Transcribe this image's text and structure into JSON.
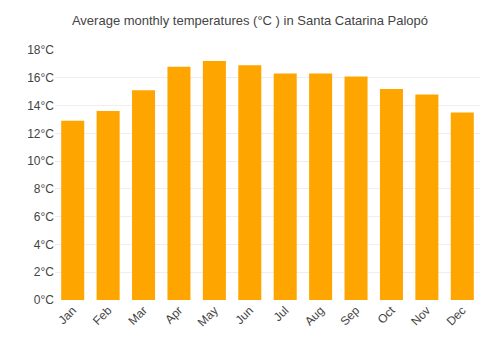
{
  "chart_data": {
    "type": "bar",
    "title": "Average monthly temperatures (°C ) in Santa Catarina Palopó",
    "categories": [
      "Jan",
      "Feb",
      "Mar",
      "Apr",
      "May",
      "Jun",
      "Jul",
      "Aug",
      "Sep",
      "Oct",
      "Nov",
      "Dec"
    ],
    "values": [
      12.9,
      13.6,
      15.1,
      16.8,
      17.2,
      16.9,
      16.3,
      16.3,
      16.1,
      15.2,
      14.8,
      13.5
    ],
    "color": "#FFA500",
    "ylim": [
      0,
      18
    ],
    "yticks": [
      {
        "value": 0,
        "label": "0°C"
      },
      {
        "value": 2,
        "label": "2°C"
      },
      {
        "value": 4,
        "label": "4°C"
      },
      {
        "value": 6,
        "label": "6°C"
      },
      {
        "value": 8,
        "label": "8°C"
      },
      {
        "value": 10,
        "label": "10°C"
      },
      {
        "value": 12,
        "label": "12°C"
      },
      {
        "value": 14,
        "label": "14°C"
      },
      {
        "value": 16,
        "label": "16°C"
      },
      {
        "value": 18,
        "label": "18°C"
      }
    ],
    "grid": true
  }
}
